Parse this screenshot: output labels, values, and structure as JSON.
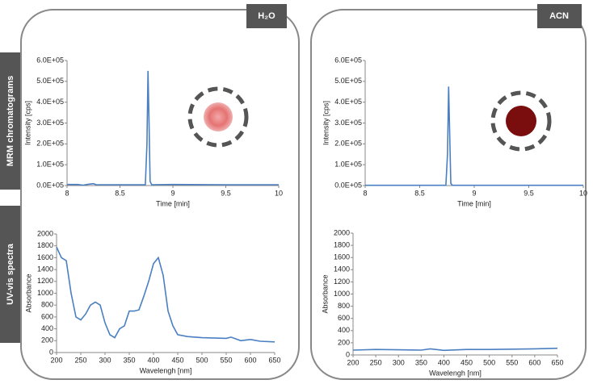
{
  "column_labels": [
    "H₂O",
    "ACN"
  ],
  "row_labels": [
    "MRM chromatograms",
    "UV-vis spectra"
  ],
  "chart_data": [
    {
      "type": "line",
      "xlabel": "Time [min]",
      "ylabel": "Intensity [cps]",
      "color": "#4a7fc1",
      "x": [
        8,
        8.1,
        8.15,
        8.2,
        8.25,
        8.28,
        8.3,
        8.74,
        8.755,
        8.765,
        8.775,
        8.785,
        8.8,
        9,
        9.5,
        10
      ],
      "values": [
        5000,
        5000,
        2000,
        6000,
        9000,
        3000,
        4000,
        4000,
        200000,
        550000,
        300000,
        20000,
        4000,
        5000,
        4000,
        4000
      ],
      "xlim": [
        8,
        10
      ],
      "xticks": [
        8,
        8.5,
        9,
        9.5,
        10
      ],
      "ylim": [
        0,
        600000
      ],
      "yticks": [
        {
          "value": 0,
          "label": "0.0E+05"
        },
        {
          "value": 100000,
          "label": "1.0E+05"
        },
        {
          "value": 200000,
          "label": "2.0E+05"
        },
        {
          "value": 300000,
          "label": "3.0E+05"
        },
        {
          "value": 400000,
          "label": "4.0E+05"
        },
        {
          "value": 500000,
          "label": "5.0E+05"
        },
        {
          "value": 600000,
          "label": "6.0E+05"
        }
      ]
    },
    {
      "type": "line",
      "xlabel": "Time [min]",
      "ylabel": "Intensity [cps]",
      "color": "#4a7fc1",
      "x": [
        8,
        8.5,
        8.74,
        8.755,
        8.765,
        8.775,
        8.785,
        8.8,
        9,
        9.5,
        10
      ],
      "values": [
        1000,
        1000,
        1000,
        150000,
        475000,
        250000,
        10000,
        1000,
        1000,
        1000,
        1000
      ],
      "xlim": [
        8,
        10
      ],
      "xticks": [
        8,
        8.5,
        9,
        9.5,
        10
      ],
      "ylim": [
        0,
        600000
      ],
      "yticks": [
        {
          "value": 0,
          "label": "0.0E+05"
        },
        {
          "value": 100000,
          "label": "1.0E+05"
        },
        {
          "value": 200000,
          "label": "2.0E+05"
        },
        {
          "value": 300000,
          "label": "3.0E+05"
        },
        {
          "value": 400000,
          "label": "4.0E+05"
        },
        {
          "value": 500000,
          "label": "5.0E+05"
        },
        {
          "value": 600000,
          "label": "6.0E+05"
        }
      ]
    },
    {
      "type": "line",
      "xlabel": "Wavelengh [nm]",
      "ylabel": "Absorbance",
      "color": "#4a7fc1",
      "x": [
        200,
        210,
        220,
        230,
        240,
        250,
        260,
        270,
        280,
        290,
        300,
        310,
        320,
        330,
        340,
        350,
        360,
        370,
        380,
        390,
        400,
        410,
        420,
        430,
        440,
        450,
        470,
        500,
        550,
        560,
        580,
        600,
        620,
        650
      ],
      "values": [
        1780,
        1600,
        1550,
        1000,
        600,
        550,
        650,
        800,
        850,
        800,
        500,
        300,
        250,
        400,
        450,
        700,
        700,
        720,
        950,
        1200,
        1500,
        1600,
        1300,
        700,
        450,
        300,
        270,
        250,
        240,
        260,
        200,
        220,
        190,
        180
      ],
      "xlim": [
        200,
        650
      ],
      "xticks": [
        200,
        250,
        300,
        350,
        400,
        450,
        500,
        550,
        600,
        650
      ],
      "ylim": [
        0,
        2000
      ],
      "yticks": [
        0,
        200,
        400,
        600,
        800,
        1000,
        1200,
        1400,
        1600,
        1800,
        2000
      ]
    },
    {
      "type": "line",
      "xlabel": "Wavelengh [nm]",
      "ylabel": "Absorbance",
      "color": "#4a7fc1",
      "x": [
        200,
        250,
        300,
        350,
        370,
        400,
        450,
        500,
        550,
        600,
        650
      ],
      "values": [
        80,
        90,
        85,
        80,
        100,
        75,
        90,
        90,
        95,
        100,
        110
      ],
      "xlim": [
        200,
        650
      ],
      "xticks": [
        200,
        250,
        300,
        350,
        400,
        450,
        500,
        550,
        600,
        650
      ],
      "ylim": [
        0,
        2000
      ],
      "yticks": [
        0,
        200,
        400,
        600,
        800,
        1000,
        1200,
        1400,
        1600,
        1800,
        2000
      ]
    }
  ]
}
